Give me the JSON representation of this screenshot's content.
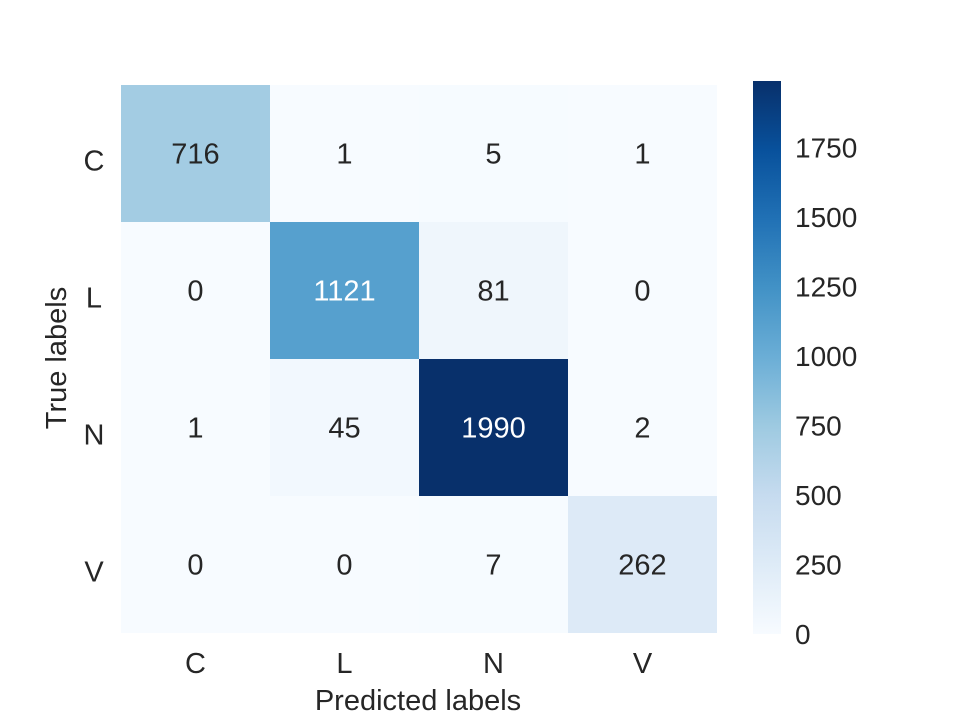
{
  "chart_data": {
    "type": "heatmap",
    "title": "",
    "xlabel": "Predicted labels",
    "ylabel": "True labels",
    "x_categories": [
      "C",
      "L",
      "N",
      "V"
    ],
    "y_categories": [
      "C",
      "L",
      "N",
      "V"
    ],
    "values": [
      [
        716,
        1,
        5,
        1
      ],
      [
        0,
        1121,
        81,
        0
      ],
      [
        1,
        45,
        1990,
        2
      ],
      [
        0,
        0,
        7,
        262
      ]
    ],
    "colormap": "Blues",
    "colorbar": {
      "min": 0,
      "max": 1990,
      "ticks": [
        0,
        250,
        500,
        750,
        1000,
        1250,
        1500,
        1750
      ]
    },
    "annotation_colors": {
      "dark_text": "#262626",
      "light_text": "#ffffff"
    }
  }
}
